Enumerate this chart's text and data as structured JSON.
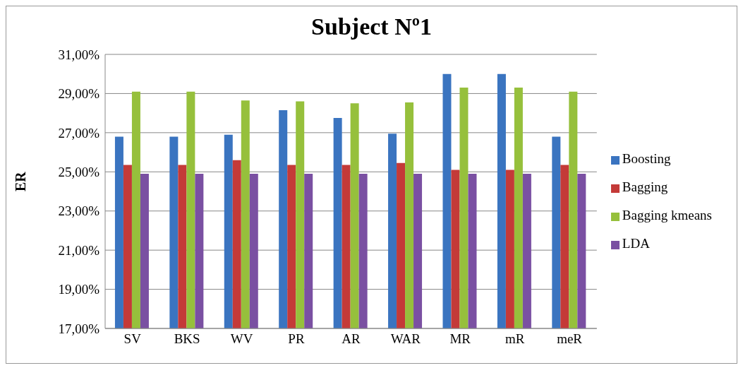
{
  "chart_data": {
    "type": "bar",
    "title": "Subject Nº1",
    "ylabel": "ER",
    "categories": [
      "SV",
      "BKS",
      "WV",
      "PR",
      "AR",
      "WAR",
      "MR",
      "mR",
      "meR"
    ],
    "series": [
      {
        "name": "Boosting",
        "color": "#3a74c0",
        "values": [
          26.8,
          26.8,
          26.9,
          28.15,
          27.75,
          26.95,
          30.0,
          30.0,
          26.8
        ]
      },
      {
        "name": "Bagging",
        "color": "#c43a38",
        "values": [
          25.35,
          25.35,
          25.6,
          25.35,
          25.35,
          25.45,
          25.1,
          25.1,
          25.35
        ]
      },
      {
        "name": "Bagging kmeans",
        "color": "#96c03c",
        "values": [
          29.1,
          29.1,
          28.65,
          28.6,
          28.5,
          28.55,
          29.3,
          29.3,
          29.1
        ]
      },
      {
        "name": "LDA",
        "color": "#7a50a2",
        "values": [
          24.9,
          24.9,
          24.9,
          24.9,
          24.9,
          24.9,
          24.9,
          24.9,
          24.9
        ]
      }
    ],
    "ylim": [
      17,
      31
    ],
    "yticks": [
      {
        "value": 17,
        "label": "17,00%"
      },
      {
        "value": 19,
        "label": "19,00%"
      },
      {
        "value": 21,
        "label": "21,00%"
      },
      {
        "value": 23,
        "label": "23,00%"
      },
      {
        "value": 25,
        "label": "25,00%"
      },
      {
        "value": 27,
        "label": "27,00%"
      },
      {
        "value": 29,
        "label": "29,00%"
      },
      {
        "value": 31,
        "label": "31,00%"
      }
    ],
    "grid": "y",
    "legend": "right"
  }
}
